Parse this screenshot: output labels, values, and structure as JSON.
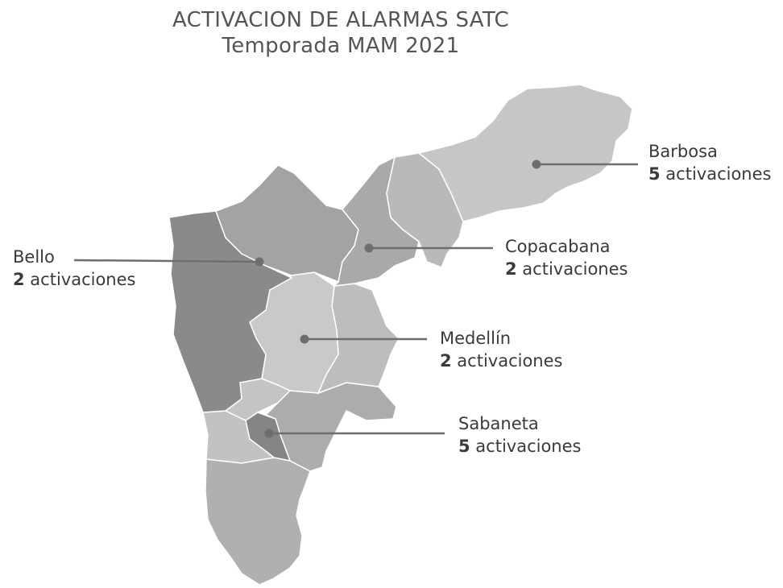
{
  "title": "ACTIVACION DE ALARMAS SATC",
  "subtitle": "Temporada MAM 2021",
  "colors": {
    "background": "#ffffff",
    "leader_line": "#6e6e6e",
    "barbosa": "#c4c4c4",
    "copacabana": "#a6a6a6",
    "bello": "#8d8d8d",
    "medellin": "#c9c9c9",
    "sabaneta": "#858585",
    "others": "#b5b5b5"
  },
  "municipalities": [
    {
      "name": "Barbosa",
      "count": "5",
      "suffix": " activaciones"
    },
    {
      "name": "Copacabana",
      "count": "2",
      "suffix": " activaciones"
    },
    {
      "name": "Bello",
      "count": "2",
      "suffix": " activaciones"
    },
    {
      "name": "Medellín",
      "count": "2",
      "suffix": " activaciones"
    },
    {
      "name": "Sabaneta",
      "count": "5",
      "suffix": " activaciones"
    }
  ]
}
